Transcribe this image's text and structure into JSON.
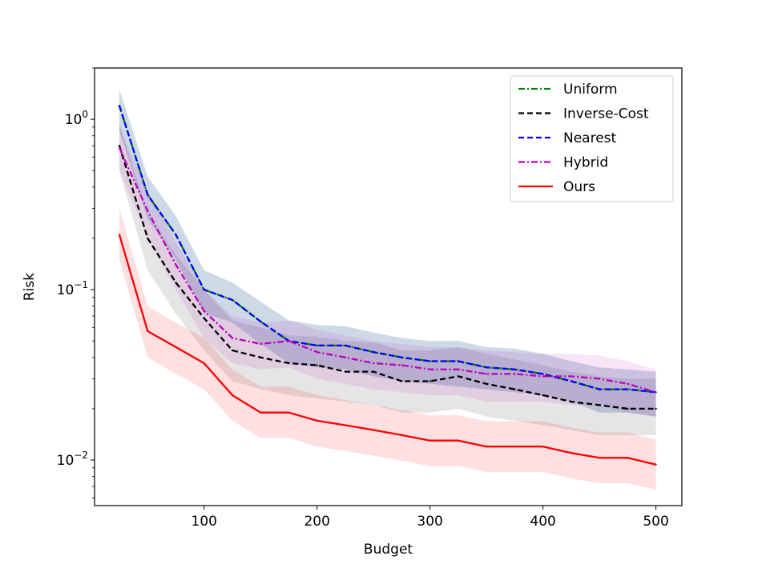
{
  "chart_data": {
    "type": "line",
    "title": "",
    "xlabel": "Budget",
    "ylabel": "Risk",
    "yscale": "log",
    "xlim": [
      3,
      523
    ],
    "ylim": [
      0.0054,
      2.0
    ],
    "grid": false,
    "legend_position": "top-right",
    "x_ticks": [
      {
        "value": 100,
        "label": "100"
      },
      {
        "value": 200,
        "label": "200"
      },
      {
        "value": 300,
        "label": "300"
      },
      {
        "value": 400,
        "label": "400"
      },
      {
        "value": 500,
        "label": "500"
      }
    ],
    "y_ticks": [
      {
        "value": 1,
        "base": "10",
        "exp": "0"
      },
      {
        "value": 0.1,
        "base": "10",
        "exp": "−1"
      },
      {
        "value": 0.01,
        "base": "10",
        "exp": "−2"
      }
    ],
    "x": [
      25,
      50,
      75,
      100,
      125,
      150,
      175,
      200,
      225,
      250,
      275,
      300,
      325,
      350,
      375,
      400,
      425,
      450,
      475,
      500
    ],
    "series": [
      {
        "name": "Uniform",
        "color": "#008000",
        "dash": "dashdot",
        "values": [
          1.2,
          0.36,
          0.21,
          0.1,
          0.087,
          0.065,
          0.05,
          0.047,
          0.047,
          0.043,
          0.04,
          0.038,
          0.038,
          0.035,
          0.034,
          0.032,
          0.029,
          0.026,
          0.026,
          0.025
        ],
        "band_low": [
          0.85,
          0.26,
          0.15,
          0.073,
          0.064,
          0.048,
          0.037,
          0.035,
          0.034,
          0.031,
          0.029,
          0.028,
          0.027,
          0.026,
          0.025,
          0.024,
          0.022,
          0.019,
          0.019,
          0.018
        ],
        "band_high": [
          1.5,
          0.46,
          0.27,
          0.13,
          0.11,
          0.085,
          0.066,
          0.062,
          0.061,
          0.056,
          0.052,
          0.05,
          0.05,
          0.046,
          0.045,
          0.042,
          0.038,
          0.035,
          0.034,
          0.033
        ]
      },
      {
        "name": "Inverse-Cost",
        "color": "#000000",
        "dash": "dashed",
        "values": [
          0.7,
          0.2,
          0.11,
          0.068,
          0.044,
          0.04,
          0.037,
          0.036,
          0.033,
          0.033,
          0.029,
          0.029,
          0.031,
          0.028,
          0.026,
          0.024,
          0.022,
          0.021,
          0.02,
          0.02
        ],
        "band_low": [
          0.5,
          0.13,
          0.072,
          0.044,
          0.029,
          0.026,
          0.024,
          0.023,
          0.022,
          0.021,
          0.019,
          0.019,
          0.02,
          0.018,
          0.017,
          0.016,
          0.015,
          0.014,
          0.014,
          0.014
        ],
        "band_high": [
          0.95,
          0.28,
          0.16,
          0.1,
          0.066,
          0.06,
          0.054,
          0.053,
          0.05,
          0.049,
          0.044,
          0.044,
          0.046,
          0.042,
          0.039,
          0.036,
          0.033,
          0.031,
          0.03,
          0.03
        ]
      },
      {
        "name": "Nearest",
        "color": "#0000ff",
        "dash": "dashed",
        "values": [
          1.2,
          0.36,
          0.21,
          0.1,
          0.087,
          0.065,
          0.05,
          0.047,
          0.047,
          0.043,
          0.04,
          0.038,
          0.038,
          0.035,
          0.034,
          0.032,
          0.029,
          0.026,
          0.026,
          0.025
        ],
        "band_low": [
          0.85,
          0.26,
          0.15,
          0.073,
          0.064,
          0.048,
          0.037,
          0.035,
          0.034,
          0.031,
          0.029,
          0.028,
          0.027,
          0.026,
          0.025,
          0.024,
          0.022,
          0.019,
          0.019,
          0.018
        ],
        "band_high": [
          1.5,
          0.46,
          0.27,
          0.13,
          0.11,
          0.085,
          0.066,
          0.062,
          0.061,
          0.056,
          0.052,
          0.05,
          0.05,
          0.046,
          0.045,
          0.042,
          0.038,
          0.035,
          0.034,
          0.033
        ]
      },
      {
        "name": "Hybrid",
        "color": "#bf00bf",
        "dash": "dashdot",
        "values": [
          0.68,
          0.29,
          0.14,
          0.075,
          0.052,
          0.048,
          0.05,
          0.043,
          0.04,
          0.037,
          0.036,
          0.034,
          0.034,
          0.032,
          0.032,
          0.031,
          0.031,
          0.03,
          0.028,
          0.025
        ],
        "band_low": [
          0.5,
          0.2,
          0.1,
          0.052,
          0.037,
          0.034,
          0.035,
          0.03,
          0.028,
          0.026,
          0.025,
          0.024,
          0.024,
          0.022,
          0.022,
          0.022,
          0.021,
          0.021,
          0.019,
          0.018
        ],
        "band_high": [
          0.9,
          0.38,
          0.19,
          0.1,
          0.07,
          0.064,
          0.066,
          0.058,
          0.054,
          0.05,
          0.048,
          0.046,
          0.046,
          0.044,
          0.043,
          0.042,
          0.042,
          0.041,
          0.038,
          0.034
        ]
      },
      {
        "name": "Ours",
        "color": "#ff0000",
        "dash": "solid",
        "values": [
          0.21,
          0.057,
          0.046,
          0.037,
          0.024,
          0.019,
          0.019,
          0.017,
          0.016,
          0.015,
          0.014,
          0.013,
          0.013,
          0.012,
          0.012,
          0.012,
          0.011,
          0.0103,
          0.0103,
          0.0094
        ],
        "band_low": [
          0.15,
          0.04,
          0.032,
          0.026,
          0.017,
          0.0135,
          0.0135,
          0.012,
          0.0113,
          0.0106,
          0.0099,
          0.0092,
          0.0092,
          0.0085,
          0.0085,
          0.0085,
          0.0078,
          0.0073,
          0.0073,
          0.0067
        ],
        "band_high": [
          0.3,
          0.08,
          0.064,
          0.052,
          0.034,
          0.027,
          0.027,
          0.024,
          0.0225,
          0.021,
          0.0197,
          0.0183,
          0.0183,
          0.0169,
          0.0169,
          0.0169,
          0.0155,
          0.0145,
          0.0145,
          0.0132
        ]
      }
    ]
  }
}
